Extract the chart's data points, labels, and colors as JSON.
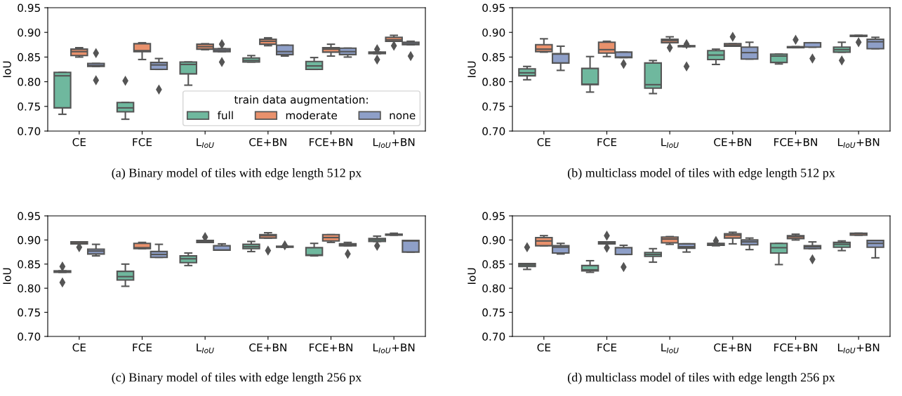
{
  "chart_data": [
    {
      "type": "box",
      "title": "(a) Binary model of tiles with edge length 512 px",
      "ylabel": "IoU",
      "categories": [
        "CE",
        "FCE",
        "L$_{IoU}$",
        "CE+BN",
        "FCE+BN",
        "L$_{IoU}$+BN"
      ],
      "ylim": [
        0.7,
        0.95
      ],
      "yticks": [
        {
          "value": 0.7,
          "label": "0.70"
        },
        {
          "value": 0.75,
          "label": "0.75"
        },
        {
          "value": 0.8,
          "label": "0.80"
        },
        {
          "value": 0.85,
          "label": "0.85"
        },
        {
          "value": 0.9,
          "label": "0.90"
        },
        {
          "value": 0.95,
          "label": "0.95"
        }
      ],
      "legend": "bottom right",
      "legend_title": "train data augmentation:",
      "series": [
        {
          "name": "full",
          "color": "#6fb89e",
          "boxes": [
            {
              "low": 0.734,
              "q1": 0.747,
              "median": 0.812,
              "q3": 0.819,
              "high": 0.819
            },
            {
              "low": 0.724,
              "q1": 0.739,
              "median": 0.747,
              "q3": 0.758,
              "high": 0.758,
              "outliers": [
                0.802
              ]
            },
            {
              "low": 0.793,
              "q1": 0.816,
              "median": 0.835,
              "q3": 0.84,
              "high": 0.84
            },
            {
              "low": 0.84,
              "q1": 0.84,
              "median": 0.843,
              "q3": 0.848,
              "high": 0.853
            },
            {
              "low": 0.825,
              "q1": 0.825,
              "median": 0.832,
              "q3": 0.841,
              "high": 0.849
            },
            {
              "low": 0.857,
              "q1": 0.857,
              "median": 0.858,
              "q3": 0.86,
              "high": 0.86,
              "outliers": [
                0.866,
                0.845
              ]
            }
          ]
        },
        {
          "name": "moderate",
          "color": "#e9916c",
          "boxes": [
            {
              "low": 0.85,
              "q1": 0.853,
              "median": 0.861,
              "q3": 0.866,
              "high": 0.869
            },
            {
              "low": 0.845,
              "q1": 0.861,
              "median": 0.863,
              "q3": 0.877,
              "high": 0.879
            },
            {
              "low": 0.865,
              "q1": 0.866,
              "median": 0.871,
              "q3": 0.876,
              "high": 0.877
            },
            {
              "low": 0.873,
              "q1": 0.876,
              "median": 0.882,
              "q3": 0.886,
              "high": 0.889
            },
            {
              "low": 0.852,
              "q1": 0.86,
              "median": 0.866,
              "q3": 0.869,
              "high": 0.876
            },
            {
              "low": 0.882,
              "q1": 0.882,
              "median": 0.885,
              "q3": 0.89,
              "high": 0.894,
              "outliers": [
                0.873
              ]
            }
          ]
        },
        {
          "name": "none",
          "color": "#8e9fc8",
          "boxes": [
            {
              "low": 0.831,
              "q1": 0.831,
              "median": 0.833,
              "q3": 0.837,
              "high": 0.837,
              "outliers": [
                0.858,
                0.803
              ]
            },
            {
              "low": 0.825,
              "q1": 0.825,
              "median": 0.834,
              "q3": 0.839,
              "high": 0.847,
              "outliers": [
                0.784
              ]
            },
            {
              "low": 0.861,
              "q1": 0.861,
              "median": 0.864,
              "q3": 0.867,
              "high": 0.867,
              "outliers": [
                0.876,
                0.84
              ]
            },
            {
              "low": 0.852,
              "q1": 0.855,
              "median": 0.861,
              "q3": 0.874,
              "high": 0.874
            },
            {
              "low": 0.85,
              "q1": 0.855,
              "median": 0.861,
              "q3": 0.868,
              "high": 0.868
            },
            {
              "low": 0.875,
              "q1": 0.875,
              "median": 0.877,
              "q3": 0.88,
              "high": 0.882,
              "outliers": [
                0.852
              ]
            }
          ]
        }
      ]
    },
    {
      "type": "box",
      "title": "(b) multiclass model of tiles with edge length 512 px",
      "ylabel": "IoU",
      "categories": [
        "CE",
        "FCE",
        "L$_{IoU}$",
        "CE+BN",
        "FCE+BN",
        "L$_{IoU}$+BN"
      ],
      "ylim": [
        0.7,
        0.95
      ],
      "yticks": [
        {
          "value": 0.7,
          "label": "0.70"
        },
        {
          "value": 0.75,
          "label": "0.75"
        },
        {
          "value": 0.8,
          "label": "0.80"
        },
        {
          "value": 0.85,
          "label": "0.85"
        },
        {
          "value": 0.9,
          "label": "0.90"
        },
        {
          "value": 0.95,
          "label": "0.95"
        }
      ],
      "series": [
        {
          "color": "#6fb89e",
          "boxes": [
            {
              "low": 0.804,
              "q1": 0.812,
              "median": 0.818,
              "q3": 0.826,
              "high": 0.831
            },
            {
              "low": 0.779,
              "q1": 0.794,
              "median": 0.795,
              "q3": 0.827,
              "high": 0.851
            },
            {
              "low": 0.776,
              "q1": 0.787,
              "median": 0.794,
              "q3": 0.838,
              "high": 0.843
            },
            {
              "low": 0.835,
              "q1": 0.845,
              "median": 0.854,
              "q3": 0.863,
              "high": 0.866
            },
            {
              "low": 0.836,
              "q1": 0.839,
              "median": 0.852,
              "q3": 0.856,
              "high": 0.856
            },
            {
              "low": 0.86,
              "q1": 0.86,
              "median": 0.865,
              "q3": 0.87,
              "high": 0.88,
              "outliers": [
                0.843
              ]
            }
          ]
        },
        {
          "color": "#e9916c",
          "boxes": [
            {
              "low": 0.86,
              "q1": 0.861,
              "median": 0.866,
              "q3": 0.875,
              "high": 0.887
            },
            {
              "low": 0.851,
              "q1": 0.858,
              "median": 0.865,
              "q3": 0.88,
              "high": 0.882
            },
            {
              "low": 0.879,
              "q1": 0.879,
              "median": 0.883,
              "q3": 0.886,
              "high": 0.891,
              "outliers": [
                0.869
              ]
            },
            {
              "low": 0.872,
              "q1": 0.872,
              "median": 0.874,
              "q3": 0.877,
              "high": 0.877,
              "outliers": [
                0.891
              ]
            },
            {
              "low": 0.869,
              "q1": 0.869,
              "median": 0.87,
              "q3": 0.871,
              "high": 0.871,
              "outliers": [
                0.885
              ]
            },
            {
              "low": 0.892,
              "q1": 0.892,
              "median": 0.893,
              "q3": 0.894,
              "high": 0.894,
              "outliers": [
                0.88
              ]
            }
          ]
        },
        {
          "color": "#8e9fc8",
          "boxes": [
            {
              "low": 0.823,
              "q1": 0.838,
              "median": 0.856,
              "q3": 0.857,
              "high": 0.872
            },
            {
              "low": 0.849,
              "q1": 0.849,
              "median": 0.85,
              "q3": 0.86,
              "high": 0.86,
              "outliers": [
                0.836
              ]
            },
            {
              "low": 0.871,
              "q1": 0.871,
              "median": 0.872,
              "q3": 0.873,
              "high": 0.873,
              "outliers": [
                0.876,
                0.831
              ]
            },
            {
              "low": 0.846,
              "q1": 0.846,
              "median": 0.859,
              "q3": 0.87,
              "high": 0.88
            },
            {
              "low": 0.87,
              "q1": 0.87,
              "median": 0.879,
              "q3": 0.879,
              "high": 0.879,
              "outliers": [
                0.847
              ]
            },
            {
              "low": 0.867,
              "q1": 0.867,
              "median": 0.881,
              "q3": 0.886,
              "high": 0.89
            }
          ]
        }
      ]
    },
    {
      "type": "box",
      "title": "(c) Binary model of tiles with edge length 256 px",
      "ylabel": "IoU",
      "categories": [
        "CE",
        "FCE",
        "L$_{IoU}$",
        "CE+BN",
        "FCE+BN",
        "L$_{IoU}$+BN"
      ],
      "ylim": [
        0.7,
        0.95
      ],
      "yticks": [
        {
          "value": 0.7,
          "label": "0.70"
        },
        {
          "value": 0.75,
          "label": "0.75"
        },
        {
          "value": 0.8,
          "label": "0.80"
        },
        {
          "value": 0.85,
          "label": "0.85"
        },
        {
          "value": 0.9,
          "label": "0.90"
        },
        {
          "value": 0.95,
          "label": "0.95"
        }
      ],
      "series": [
        {
          "color": "#6fb89e",
          "boxes": [
            {
              "low": 0.833,
              "q1": 0.833,
              "median": 0.834,
              "q3": 0.836,
              "high": 0.836,
              "outliers": [
                0.845,
                0.812
              ]
            },
            {
              "low": 0.804,
              "q1": 0.817,
              "median": 0.824,
              "q3": 0.835,
              "high": 0.85
            },
            {
              "low": 0.847,
              "q1": 0.853,
              "median": 0.861,
              "q3": 0.867,
              "high": 0.873
            },
            {
              "low": 0.876,
              "q1": 0.882,
              "median": 0.886,
              "q3": 0.891,
              "high": 0.897
            },
            {
              "low": 0.867,
              "q1": 0.868,
              "median": 0.869,
              "q3": 0.884,
              "high": 0.893
            },
            {
              "low": 0.897,
              "q1": 0.897,
              "median": 0.9,
              "q3": 0.903,
              "high": 0.908,
              "outliers": [
                0.888
              ]
            }
          ]
        },
        {
          "color": "#e9916c",
          "boxes": [
            {
              "low": 0.892,
              "q1": 0.892,
              "median": 0.893,
              "q3": 0.896,
              "high": 0.896,
              "outliers": [
                0.885
              ]
            },
            {
              "low": 0.882,
              "q1": 0.882,
              "median": 0.884,
              "q3": 0.893,
              "high": 0.895
            },
            {
              "low": 0.895,
              "q1": 0.895,
              "median": 0.897,
              "q3": 0.899,
              "high": 0.899,
              "outliers": [
                0.906
              ]
            },
            {
              "low": 0.904,
              "q1": 0.904,
              "median": 0.909,
              "q3": 0.911,
              "high": 0.915,
              "outliers": [
                0.878
              ]
            },
            {
              "low": 0.895,
              "q1": 0.898,
              "median": 0.905,
              "q3": 0.911,
              "high": 0.911
            },
            {
              "low": 0.91,
              "q1": 0.91,
              "median": 0.911,
              "q3": 0.912,
              "high": 0.914
            }
          ]
        },
        {
          "color": "#8e9fc8",
          "boxes": [
            {
              "low": 0.867,
              "q1": 0.871,
              "median": 0.877,
              "q3": 0.881,
              "high": 0.891
            },
            {
              "low": 0.864,
              "q1": 0.864,
              "median": 0.87,
              "q3": 0.876,
              "high": 0.891
            },
            {
              "low": 0.879,
              "q1": 0.879,
              "median": 0.879,
              "q3": 0.888,
              "high": 0.892
            },
            {
              "low": 0.885,
              "q1": 0.885,
              "median": 0.886,
              "q3": 0.887,
              "high": 0.887,
              "outliers": [
                0.889
              ]
            },
            {
              "low": 0.888,
              "q1": 0.888,
              "median": 0.89,
              "q3": 0.892,
              "high": 0.895,
              "outliers": [
                0.871
              ]
            },
            {
              "low": 0.875,
              "q1": 0.875,
              "median": 0.898,
              "q3": 0.899,
              "high": 0.899
            }
          ]
        }
      ]
    },
    {
      "type": "box",
      "title": "(d) multiclass model of tiles with edge length 256 px",
      "ylabel": "IoU",
      "categories": [
        "CE",
        "FCE",
        "L$_{IoU}$",
        "CE+BN",
        "FCE+BN",
        "L$_{IoU}$+BN"
      ],
      "ylim": [
        0.7,
        0.95
      ],
      "yticks": [
        {
          "value": 0.7,
          "label": "0.70"
        },
        {
          "value": 0.75,
          "label": "0.75"
        },
        {
          "value": 0.8,
          "label": "0.80"
        },
        {
          "value": 0.85,
          "label": "0.85"
        },
        {
          "value": 0.9,
          "label": "0.90"
        },
        {
          "value": 0.95,
          "label": "0.95"
        }
      ],
      "series": [
        {
          "color": "#6fb89e",
          "boxes": [
            {
              "low": 0.839,
              "q1": 0.845,
              "median": 0.848,
              "q3": 0.851,
              "high": 0.851,
              "outliers": [
                0.885
              ]
            },
            {
              "low": 0.833,
              "q1": 0.836,
              "median": 0.838,
              "q3": 0.847,
              "high": 0.857
            },
            {
              "low": 0.854,
              "q1": 0.866,
              "median": 0.87,
              "q3": 0.874,
              "high": 0.882
            },
            {
              "low": 0.888,
              "q1": 0.889,
              "median": 0.892,
              "q3": 0.893,
              "high": 0.893,
              "outliers": [
                0.898
              ]
            },
            {
              "low": 0.849,
              "q1": 0.873,
              "median": 0.884,
              "q3": 0.893,
              "high": 0.893
            },
            {
              "low": 0.878,
              "q1": 0.885,
              "median": 0.891,
              "q3": 0.895,
              "high": 0.898
            }
          ]
        },
        {
          "color": "#e9916c",
          "boxes": [
            {
              "low": 0.888,
              "q1": 0.888,
              "median": 0.898,
              "q3": 0.905,
              "high": 0.909
            },
            {
              "low": 0.892,
              "q1": 0.892,
              "median": 0.894,
              "q3": 0.896,
              "high": 0.896,
              "outliers": [
                0.909,
                0.884
              ]
            },
            {
              "low": 0.891,
              "q1": 0.894,
              "median": 0.902,
              "q3": 0.906,
              "high": 0.907
            },
            {
              "low": 0.892,
              "q1": 0.904,
              "median": 0.91,
              "q3": 0.913,
              "high": 0.916
            },
            {
              "low": 0.9,
              "q1": 0.903,
              "median": 0.907,
              "q3": 0.909,
              "high": 0.912
            },
            {
              "low": 0.91,
              "q1": 0.91,
              "median": 0.913,
              "q3": 0.914,
              "high": 0.914
            }
          ]
        },
        {
          "color": "#8e9fc8",
          "boxes": [
            {
              "low": 0.871,
              "q1": 0.873,
              "median": 0.885,
              "q3": 0.888,
              "high": 0.893
            },
            {
              "low": 0.87,
              "q1": 0.87,
              "median": 0.87,
              "q3": 0.884,
              "high": 0.889,
              "outliers": [
                0.844
              ]
            },
            {
              "low": 0.875,
              "q1": 0.883,
              "median": 0.886,
              "q3": 0.892,
              "high": 0.892
            },
            {
              "low": 0.88,
              "q1": 0.89,
              "median": 0.896,
              "q3": 0.9,
              "high": 0.904
            },
            {
              "low": 0.882,
              "q1": 0.882,
              "median": 0.886,
              "q3": 0.888,
              "high": 0.896,
              "outliers": [
                0.86
              ]
            },
            {
              "low": 0.863,
              "q1": 0.885,
              "median": 0.893,
              "q3": 0.899,
              "high": 0.899
            }
          ]
        }
      ]
    }
  ]
}
